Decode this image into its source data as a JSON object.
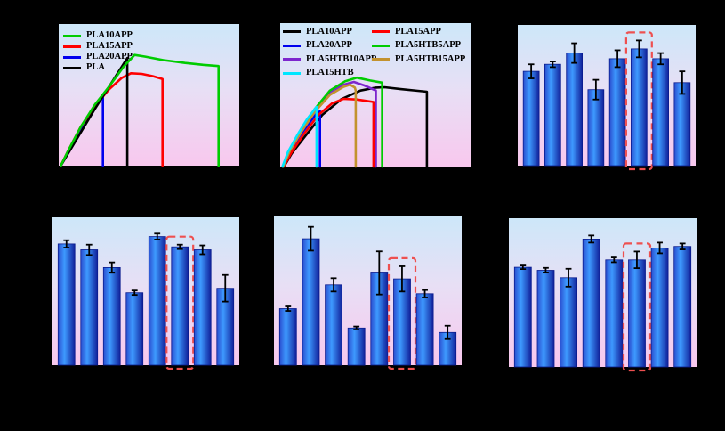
{
  "figure": {
    "background": "#000000",
    "layout": "2 rows x 3 columns of subplots",
    "note": "Axis tick labels, axis titles and panel letters are rendered black-on-black and are not visible in the image; only plot areas, curves, bars and legends are visible."
  },
  "chart_data": [
    {
      "id": "a",
      "position": "top-left",
      "type": "line",
      "title": "",
      "xlabel": "",
      "ylabel": "",
      "axes_text_visible": false,
      "x_range": [
        0,
        1
      ],
      "y_range": [
        0,
        1
      ],
      "plot_bg_gradient": [
        "#cde7f9",
        "#e8dff5",
        "#f8c8ee"
      ],
      "legend": {
        "position": "top-left",
        "items": [
          {
            "label": "PLA10APP",
            "color": "#00CC00"
          },
          {
            "label": "PLA15APP",
            "color": "#FF0000"
          },
          {
            "label": "PLA20APP",
            "color": "#0000EE"
          },
          {
            "label": "PLA",
            "color": "#000000"
          }
        ]
      },
      "series": [
        {
          "name": "PLA20APP",
          "color": "#0000EE",
          "points": [
            [
              0.012,
              0
            ],
            [
              0.05,
              0.09
            ],
            [
              0.12,
              0.25
            ],
            [
              0.18,
              0.37
            ],
            [
              0.23,
              0.465
            ],
            [
              0.245,
              0.49
            ],
            [
              0.245,
              0
            ]
          ]
        },
        {
          "name": "PLA15APP",
          "color": "#FF0000",
          "points": [
            [
              0.012,
              0
            ],
            [
              0.05,
              0.1
            ],
            [
              0.12,
              0.27
            ],
            [
              0.2,
              0.42
            ],
            [
              0.28,
              0.54
            ],
            [
              0.35,
              0.62
            ],
            [
              0.4,
              0.652
            ],
            [
              0.46,
              0.648
            ],
            [
              0.52,
              0.632
            ],
            [
              0.575,
              0.612
            ],
            [
              0.575,
              0
            ]
          ]
        },
        {
          "name": "PLA",
          "color": "#000000",
          "points": [
            [
              0.012,
              0
            ],
            [
              0.2,
              0.4
            ],
            [
              0.38,
              0.76
            ],
            [
              0.38,
              0
            ]
          ]
        },
        {
          "name": "PLA10APP",
          "color": "#00CC00",
          "points": [
            [
              0.012,
              0
            ],
            [
              0.05,
              0.1
            ],
            [
              0.12,
              0.27
            ],
            [
              0.2,
              0.43
            ],
            [
              0.28,
              0.56
            ],
            [
              0.36,
              0.7
            ],
            [
              0.42,
              0.782
            ],
            [
              0.48,
              0.77
            ],
            [
              0.58,
              0.745
            ],
            [
              0.7,
              0.725
            ],
            [
              0.8,
              0.712
            ],
            [
              0.885,
              0.703
            ],
            [
              0.885,
              0
            ]
          ]
        }
      ]
    },
    {
      "id": "b",
      "position": "top-middle",
      "type": "line",
      "title": "",
      "xlabel": "",
      "ylabel": "",
      "axes_text_visible": false,
      "x_range": [
        0,
        1
      ],
      "y_range": [
        0,
        1
      ],
      "plot_bg_gradient": [
        "#cde7f9",
        "#e8dff5",
        "#f8c8ee"
      ],
      "legend": {
        "position": "top-left",
        "columns": [
          {
            "items": [
              {
                "label": "PLA10APP",
                "color": "#000000"
              },
              {
                "label": "PLA20APP",
                "color": "#0000EE"
              },
              {
                "label": "PLA5HTB10APP",
                "color": "#7D26CD"
              },
              {
                "label": "PLA15HTB",
                "color": "#00E6FF"
              }
            ]
          },
          {
            "items": [
              {
                "label": "PLA15APP",
                "color": "#FF0000"
              },
              {
                "label": "PLA5HTB5APP",
                "color": "#00CC00"
              },
              {
                "label": "PLA5HTB15APP",
                "color": "#C3922E"
              }
            ]
          }
        ]
      },
      "series": [
        {
          "name": "PLA10APP",
          "color": "#000000",
          "points": [
            [
              0.02,
              0
            ],
            [
              0.06,
              0.09
            ],
            [
              0.13,
              0.21
            ],
            [
              0.22,
              0.36
            ],
            [
              0.32,
              0.47
            ],
            [
              0.42,
              0.53
            ],
            [
              0.5,
              0.55
            ],
            [
              0.545,
              0.553
            ],
            [
              0.63,
              0.54
            ],
            [
              0.72,
              0.528
            ],
            [
              0.767,
              0.522
            ],
            [
              0.767,
              0
            ]
          ]
        },
        {
          "name": "PLA20APP",
          "color": "#0000EE",
          "points": [
            [
              0.015,
              0
            ],
            [
              0.05,
              0.1
            ],
            [
              0.1,
              0.21
            ],
            [
              0.15,
              0.3
            ],
            [
              0.19,
              0.37
            ],
            [
              0.208,
              0.385
            ],
            [
              0.208,
              0
            ]
          ]
        },
        {
          "name": "PLA15APP",
          "color": "#FF0000",
          "points": [
            [
              0.018,
              0
            ],
            [
              0.06,
              0.1
            ],
            [
              0.12,
              0.22
            ],
            [
              0.2,
              0.36
            ],
            [
              0.27,
              0.44
            ],
            [
              0.33,
              0.472
            ],
            [
              0.4,
              0.468
            ],
            [
              0.45,
              0.458
            ],
            [
              0.488,
              0.45
            ],
            [
              0.488,
              0
            ]
          ]
        },
        {
          "name": "PLA5HTB10APP",
          "color": "#7D26CD",
          "points": [
            [
              0.015,
              0
            ],
            [
              0.05,
              0.11
            ],
            [
              0.11,
              0.24
            ],
            [
              0.18,
              0.39
            ],
            [
              0.26,
              0.52
            ],
            [
              0.33,
              0.57
            ],
            [
              0.385,
              0.59
            ],
            [
              0.44,
              0.565
            ],
            [
              0.5,
              0.53
            ],
            [
              0.5,
              0
            ]
          ]
        },
        {
          "name": "PLA5HTB5APP",
          "color": "#00CC00",
          "points": [
            [
              0.015,
              0
            ],
            [
              0.05,
              0.11
            ],
            [
              0.11,
              0.25
            ],
            [
              0.18,
              0.4
            ],
            [
              0.26,
              0.53
            ],
            [
              0.34,
              0.595
            ],
            [
              0.4,
              0.62
            ],
            [
              0.47,
              0.6
            ],
            [
              0.533,
              0.585
            ],
            [
              0.533,
              0
            ]
          ]
        },
        {
          "name": "PLA5HTB15APP",
          "color": "#C3922E",
          "points": [
            [
              0.015,
              0
            ],
            [
              0.05,
              0.11
            ],
            [
              0.11,
              0.24
            ],
            [
              0.18,
              0.38
            ],
            [
              0.26,
              0.5
            ],
            [
              0.33,
              0.555
            ],
            [
              0.365,
              0.571
            ],
            [
              0.39,
              0.55
            ],
            [
              0.395,
              0.53
            ],
            [
              0.395,
              0
            ]
          ]
        },
        {
          "name": "PLA15HTB",
          "color": "#00E6FF",
          "points": [
            [
              0.012,
              0
            ],
            [
              0.04,
              0.1
            ],
            [
              0.09,
              0.22
            ],
            [
              0.14,
              0.33
            ],
            [
              0.18,
              0.4
            ],
            [
              0.19,
              0.416
            ],
            [
              0.19,
              0
            ]
          ]
        }
      ]
    },
    {
      "id": "c",
      "position": "top-right",
      "type": "bar",
      "title": "",
      "xlabel": "",
      "ylabel": "",
      "axes_text_visible": false,
      "values_note": "bar heights normalized 0-1 of plot height; axis scale not visible",
      "bar_count": 8,
      "values": [
        0.67,
        0.72,
        0.8,
        0.54,
        0.76,
        0.83,
        0.76,
        0.59
      ],
      "errors": [
        0.05,
        0.02,
        0.07,
        0.07,
        0.06,
        0.06,
        0.04,
        0.08
      ],
      "highlight_index": 5,
      "highlight_color": "#EE5050",
      "bar_gradient": [
        "#2A4ECF",
        "#3E9AFF",
        "#10209A"
      ]
    },
    {
      "id": "d",
      "position": "bottom-left",
      "type": "bar",
      "title": "",
      "xlabel": "",
      "ylabel": "",
      "axes_text_visible": false,
      "values_note": "bar heights normalized 0-1 of plot height; axis scale not visible",
      "bar_count": 8,
      "values": [
        0.82,
        0.78,
        0.66,
        0.49,
        0.87,
        0.8,
        0.78,
        0.52
      ],
      "errors": [
        0.025,
        0.035,
        0.035,
        0.015,
        0.02,
        0.015,
        0.03,
        0.09
      ],
      "highlight_index": 5,
      "highlight_color": "#EE5050",
      "bar_gradient": [
        "#2A4ECF",
        "#3E9AFF",
        "#10209A"
      ]
    },
    {
      "id": "e",
      "position": "bottom-middle",
      "type": "bar",
      "title": "",
      "xlabel": "",
      "ylabel": "",
      "axes_text_visible": false,
      "values_note": "bar heights normalized 0-1 of plot height; axis scale not visible",
      "bar_count": 8,
      "values": [
        0.38,
        0.85,
        0.54,
        0.25,
        0.62,
        0.58,
        0.48,
        0.22
      ],
      "errors": [
        0.015,
        0.08,
        0.045,
        0.01,
        0.145,
        0.085,
        0.025,
        0.045
      ],
      "highlight_index": 5,
      "highlight_color": "#EE5050",
      "bar_gradient": [
        "#2A4ECF",
        "#3E9AFF",
        "#10209A"
      ]
    },
    {
      "id": "f",
      "position": "bottom-right",
      "type": "bar",
      "title": "",
      "xlabel": "",
      "ylabel": "",
      "axes_text_visible": false,
      "values_note": "bar heights normalized 0-1 of plot height; axis scale not visible",
      "bar_count": 8,
      "values": [
        0.67,
        0.65,
        0.6,
        0.86,
        0.72,
        0.72,
        0.8,
        0.81
      ],
      "errors": [
        0.012,
        0.016,
        0.06,
        0.024,
        0.016,
        0.056,
        0.036,
        0.02
      ],
      "highlight_index": 5,
      "highlight_color": "#EE5050",
      "bar_gradient": [
        "#2A4ECF",
        "#3E9AFF",
        "#10209A"
      ]
    }
  ]
}
